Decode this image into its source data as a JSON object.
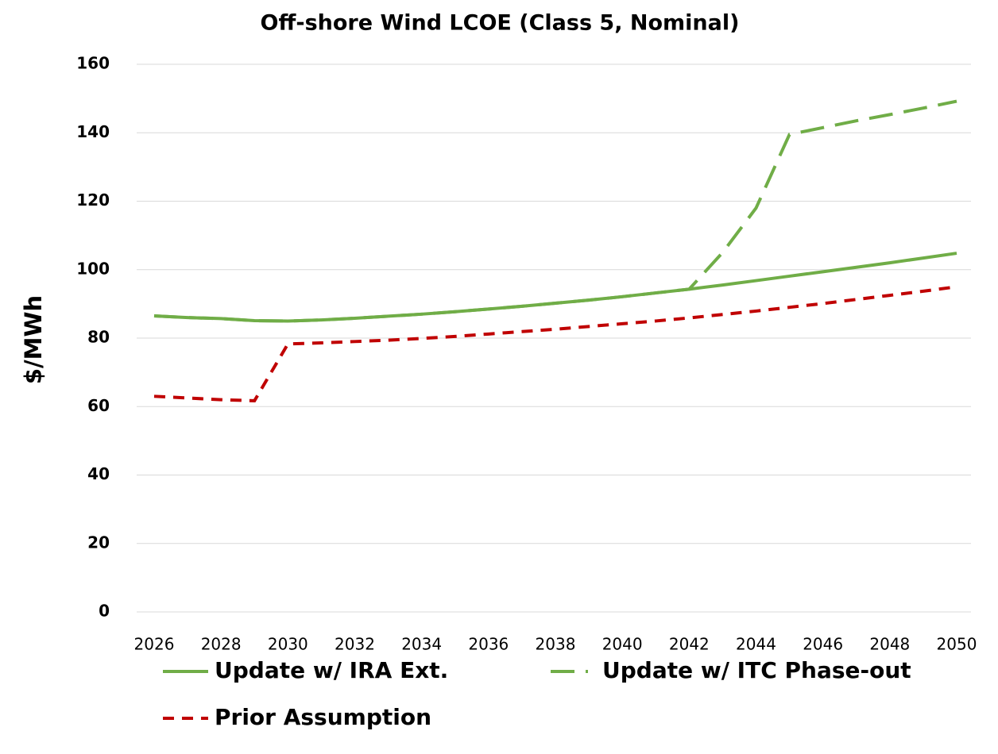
{
  "chart_data": {
    "type": "line",
    "title": "Off-shore Wind LCOE (Class 5, Nominal)",
    "y_label": "$/MWh",
    "x": [
      2026,
      2027,
      2028,
      2029,
      2030,
      2031,
      2032,
      2033,
      2034,
      2035,
      2036,
      2037,
      2038,
      2039,
      2040,
      2041,
      2042,
      2043,
      2044,
      2045,
      2046,
      2047,
      2048,
      2049,
      2050
    ],
    "xlim": [
      2026,
      2050
    ],
    "xticks": [
      2026,
      2028,
      2030,
      2032,
      2034,
      2036,
      2038,
      2040,
      2042,
      2044,
      2046,
      2048,
      2050
    ],
    "ylim": [
      0,
      160
    ],
    "yticks": [
      0,
      20,
      40,
      60,
      80,
      100,
      120,
      140,
      160
    ],
    "grid": true,
    "legend": "bottom",
    "series": [
      {
        "name": "Update w/ IRA Ext.",
        "color": "#70ad47",
        "style": "solid",
        "values": [
          86.5,
          86.0,
          85.7,
          85.1,
          85.0,
          85.3,
          85.8,
          86.4,
          87.0,
          87.7,
          88.5,
          89.3,
          90.2,
          91.1,
          92.1,
          93.2,
          94.3,
          95.5,
          96.8,
          98.1,
          99.4,
          100.7,
          102.0,
          103.4,
          104.8
        ]
      },
      {
        "name": "Update w/ ITC Phase-out",
        "color": "#70ad47",
        "style": "long-dash",
        "values": [
          86.5,
          86.0,
          85.7,
          85.1,
          85.0,
          85.3,
          85.8,
          86.4,
          87.0,
          87.7,
          88.5,
          89.3,
          90.2,
          91.1,
          92.1,
          93.2,
          94.3,
          105.0,
          118.0,
          139.5,
          141.5,
          143.5,
          145.3,
          147.2,
          149.2
        ]
      },
      {
        "name": "Prior Assumption",
        "color": "#c00000",
        "style": "dash",
        "values": [
          63.0,
          62.5,
          62.0,
          61.7,
          78.3,
          78.6,
          79.0,
          79.4,
          79.9,
          80.5,
          81.2,
          81.9,
          82.6,
          83.4,
          84.2,
          85.0,
          85.9,
          86.9,
          87.9,
          89.0,
          90.1,
          91.3,
          92.5,
          93.7,
          95.0
        ]
      }
    ]
  }
}
